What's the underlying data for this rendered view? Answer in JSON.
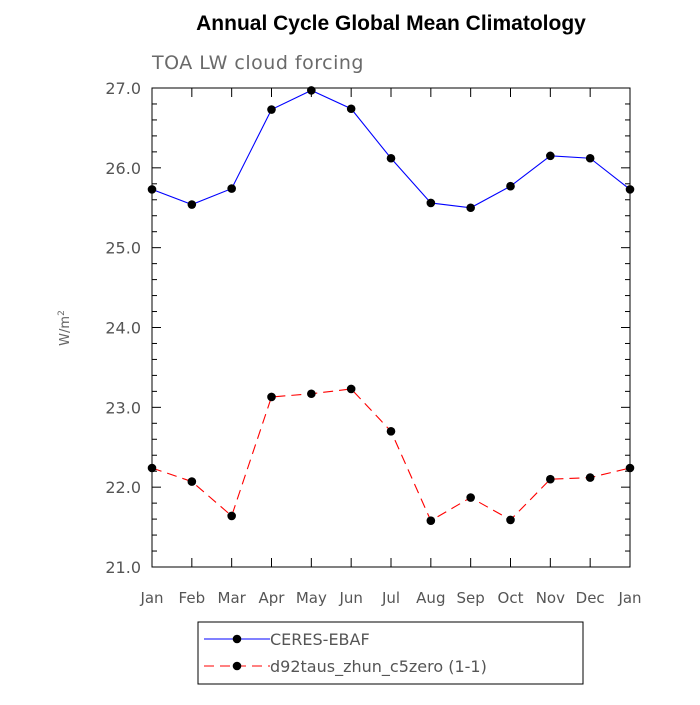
{
  "chart_data": {
    "type": "line",
    "title": "Annual Cycle Global Mean Climatology",
    "subtitle": "TOA LW cloud forcing",
    "xlabel": "",
    "ylabel": "W/m",
    "ylabel_superscript": "2",
    "categories": [
      "Jan",
      "Feb",
      "Mar",
      "Apr",
      "May",
      "Jun",
      "Jul",
      "Aug",
      "Sep",
      "Oct",
      "Nov",
      "Dec",
      "Jan"
    ],
    "ylim": [
      21.0,
      27.0
    ],
    "yticks": [
      "21.0",
      "22.0",
      "23.0",
      "24.0",
      "25.0",
      "26.0",
      "27.0"
    ],
    "grid": false,
    "legend_position": "bottom",
    "series": [
      {
        "name": "CERES-EBAF",
        "color": "#0000ff",
        "line_style": "solid",
        "values": [
          25.73,
          25.54,
          25.74,
          26.73,
          26.97,
          26.74,
          26.12,
          25.56,
          25.5,
          25.77,
          26.15,
          26.12,
          25.73
        ]
      },
      {
        "name": "d92taus_zhun_c5zero (1-1)",
        "color": "#ff0000",
        "line_style": "dashed",
        "values": [
          22.24,
          22.07,
          21.64,
          23.13,
          23.17,
          23.23,
          22.7,
          21.58,
          21.87,
          21.59,
          22.1,
          22.12,
          22.24
        ]
      }
    ]
  }
}
